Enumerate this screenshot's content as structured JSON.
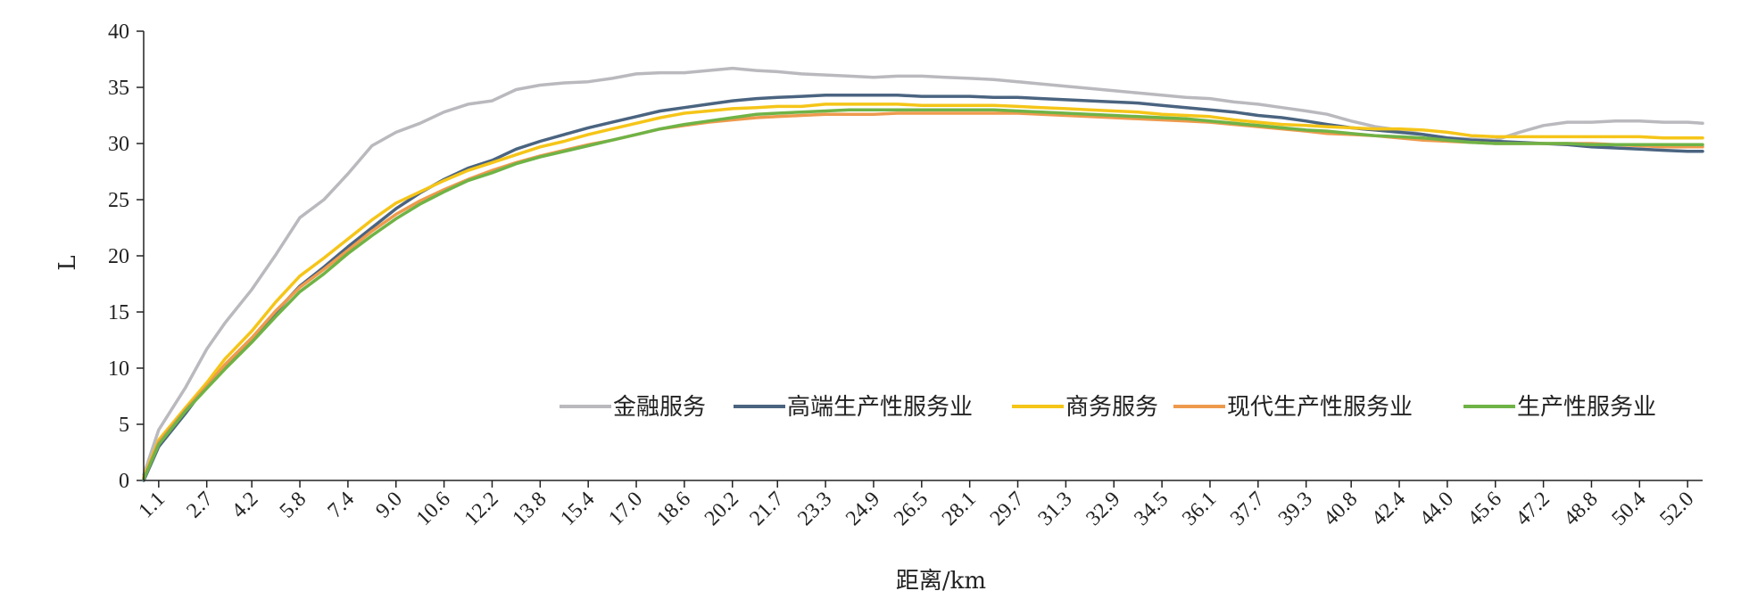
{
  "chart_data": {
    "type": "line",
    "title": "",
    "xlabel": "距离/km",
    "ylabel": "L",
    "xlim": [
      0.6,
      52.5
    ],
    "ylim": [
      0,
      40
    ],
    "yticks": [
      0,
      5,
      10,
      15,
      20,
      25,
      30,
      35,
      40
    ],
    "xtick_labels": [
      "1.1",
      "2.7",
      "4.2",
      "5.8",
      "7.4",
      "9.0",
      "10.6",
      "12.2",
      "13.8",
      "15.4",
      "17.0",
      "18.6",
      "20.2",
      "21.7",
      "23.3",
      "24.9",
      "26.5",
      "28.1",
      "29.7",
      "31.3",
      "32.9",
      "34.5",
      "36.1",
      "37.7",
      "39.3",
      "40.8",
      "42.4",
      "44.0",
      "45.6",
      "47.2",
      "48.8",
      "50.4",
      "52.0"
    ],
    "xtick_values": [
      1.1,
      2.7,
      4.2,
      5.8,
      7.4,
      9.0,
      10.6,
      12.2,
      13.8,
      15.4,
      17.0,
      18.6,
      20.2,
      21.7,
      23.3,
      24.9,
      26.5,
      28.1,
      29.7,
      31.3,
      32.9,
      34.5,
      36.1,
      37.7,
      39.3,
      40.8,
      42.4,
      44.0,
      45.6,
      47.2,
      48.8,
      50.4,
      52.0
    ],
    "grid": false,
    "legend_position": "center-right",
    "x": [
      0.6,
      1.1,
      2.0,
      2.7,
      3.3,
      4.2,
      5.0,
      5.8,
      6.6,
      7.4,
      8.2,
      9.0,
      9.8,
      10.6,
      11.4,
      12.2,
      13.0,
      13.8,
      14.6,
      15.4,
      16.2,
      17.0,
      17.8,
      18.6,
      19.4,
      20.2,
      21.0,
      21.7,
      22.5,
      23.3,
      24.1,
      24.9,
      25.7,
      26.5,
      27.3,
      28.1,
      28.9,
      29.7,
      30.5,
      31.3,
      32.1,
      32.9,
      33.7,
      34.5,
      35.3,
      36.1,
      36.9,
      37.7,
      38.5,
      39.3,
      40.0,
      40.8,
      41.6,
      42.4,
      43.2,
      44.0,
      44.8,
      45.6,
      46.4,
      47.2,
      48.0,
      48.8,
      49.6,
      50.4,
      51.2,
      52.0,
      52.5
    ],
    "series": [
      {
        "name": "金融服务",
        "color": "#b9b9be",
        "values": [
          0.5,
          4.5,
          8.3,
          11.7,
          14.0,
          17.0,
          20.1,
          23.4,
          25.0,
          27.3,
          29.8,
          31.0,
          31.8,
          32.8,
          33.5,
          33.8,
          34.8,
          35.2,
          35.4,
          35.5,
          35.8,
          36.2,
          36.3,
          36.3,
          36.5,
          36.7,
          36.5,
          36.4,
          36.2,
          36.1,
          36.0,
          35.9,
          36.0,
          36.0,
          35.9,
          35.8,
          35.7,
          35.5,
          35.3,
          35.1,
          34.9,
          34.7,
          34.5,
          34.3,
          34.1,
          34.0,
          33.7,
          33.5,
          33.2,
          32.9,
          32.6,
          32.0,
          31.5,
          31.2,
          30.8,
          30.5,
          30.4,
          30.3,
          31.0,
          31.6,
          31.9,
          31.9,
          32.0,
          32.0,
          31.9,
          31.9,
          31.8
        ]
      },
      {
        "name": "高端生产性服务业",
        "color": "#4a6480",
        "values": [
          0.0,
          3.0,
          6.0,
          8.5,
          10.2,
          12.5,
          15.0,
          17.3,
          19.0,
          20.8,
          22.5,
          24.2,
          25.6,
          26.8,
          27.8,
          28.5,
          29.5,
          30.2,
          30.8,
          31.4,
          31.9,
          32.4,
          32.9,
          33.2,
          33.5,
          33.8,
          34.0,
          34.1,
          34.2,
          34.3,
          34.3,
          34.3,
          34.3,
          34.2,
          34.2,
          34.2,
          34.1,
          34.1,
          34.0,
          33.9,
          33.8,
          33.7,
          33.6,
          33.4,
          33.2,
          33.0,
          32.8,
          32.5,
          32.3,
          32.0,
          31.7,
          31.4,
          31.2,
          31.0,
          30.8,
          30.5,
          30.3,
          30.2,
          30.1,
          30.0,
          29.9,
          29.7,
          29.6,
          29.5,
          29.4,
          29.3,
          29.3
        ]
      },
      {
        "name": "商务服务",
        "color": "#f5c518",
        "values": [
          0.3,
          3.6,
          6.5,
          8.7,
          10.8,
          13.3,
          15.9,
          18.2,
          19.8,
          21.5,
          23.2,
          24.7,
          25.7,
          26.7,
          27.6,
          28.3,
          29.0,
          29.7,
          30.2,
          30.8,
          31.3,
          31.8,
          32.3,
          32.7,
          32.9,
          33.1,
          33.2,
          33.3,
          33.3,
          33.5,
          33.5,
          33.5,
          33.5,
          33.4,
          33.4,
          33.4,
          33.4,
          33.3,
          33.2,
          33.1,
          33.0,
          32.9,
          32.8,
          32.6,
          32.5,
          32.4,
          32.1,
          31.9,
          31.7,
          31.6,
          31.5,
          31.4,
          31.3,
          31.3,
          31.2,
          31.0,
          30.7,
          30.6,
          30.6,
          30.6,
          30.6,
          30.6,
          30.6,
          30.6,
          30.5,
          30.5,
          30.5
        ]
      },
      {
        "name": "现代生产性服务业",
        "color": "#ee9a4d",
        "values": [
          0.2,
          3.4,
          6.3,
          8.4,
          10.3,
          12.7,
          15.1,
          17.2,
          18.8,
          20.5,
          22.2,
          23.7,
          24.9,
          25.9,
          26.8,
          27.6,
          28.3,
          28.9,
          29.4,
          29.9,
          30.3,
          30.8,
          31.3,
          31.6,
          31.9,
          32.1,
          32.3,
          32.4,
          32.5,
          32.6,
          32.6,
          32.6,
          32.7,
          32.7,
          32.7,
          32.7,
          32.7,
          32.7,
          32.6,
          32.5,
          32.4,
          32.3,
          32.2,
          32.1,
          32.0,
          31.9,
          31.7,
          31.5,
          31.3,
          31.1,
          30.9,
          30.8,
          30.7,
          30.5,
          30.3,
          30.2,
          30.1,
          30.0,
          30.0,
          30.0,
          30.0,
          30.0,
          29.9,
          29.8,
          29.7,
          29.7,
          29.7
        ]
      },
      {
        "name": "生产性服务业",
        "color": "#6fb346",
        "values": [
          0.1,
          3.2,
          6.2,
          8.2,
          9.9,
          12.3,
          14.6,
          16.8,
          18.4,
          20.2,
          21.8,
          23.3,
          24.6,
          25.7,
          26.7,
          27.4,
          28.2,
          28.8,
          29.3,
          29.8,
          30.3,
          30.8,
          31.3,
          31.7,
          32.0,
          32.3,
          32.6,
          32.7,
          32.8,
          32.9,
          33.0,
          33.0,
          33.0,
          33.0,
          33.0,
          33.0,
          33.0,
          32.9,
          32.8,
          32.7,
          32.6,
          32.5,
          32.4,
          32.3,
          32.2,
          32.0,
          31.8,
          31.6,
          31.4,
          31.2,
          31.1,
          30.9,
          30.7,
          30.6,
          30.5,
          30.3,
          30.1,
          30.0,
          30.0,
          30.0,
          30.0,
          29.9,
          29.9,
          29.9,
          29.9,
          29.9,
          29.9
        ]
      }
    ]
  }
}
